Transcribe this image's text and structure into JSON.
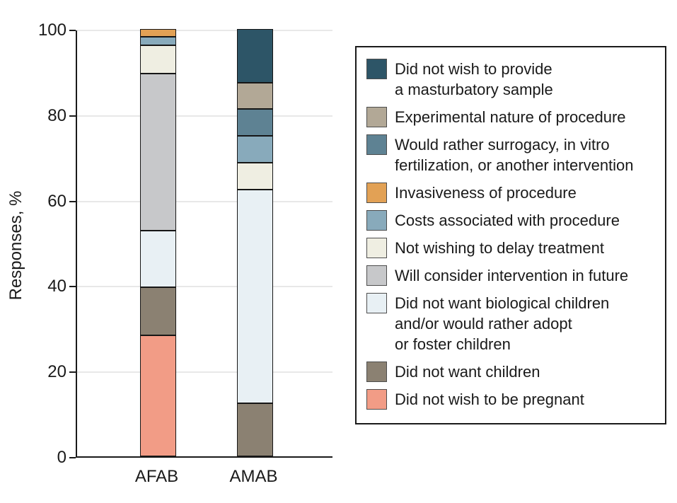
{
  "figure": {
    "y_axis_label": "Responses, %"
  },
  "chart_data": {
    "type": "bar",
    "subtype": "stacked_percentage",
    "title": "",
    "xlabel": "",
    "ylabel": "Responses, %",
    "ylim": [
      0,
      100
    ],
    "y_ticks": [
      0,
      20,
      40,
      60,
      80,
      100
    ],
    "grid": true,
    "legend_position": "right",
    "categories": [
      "AFAB",
      "AMAB"
    ],
    "series_order": "bottom_to_top",
    "series": [
      {
        "name": "Did not wish to be pregnant",
        "color": "#F29C86",
        "values": [
          28.3,
          0
        ]
      },
      {
        "name": "Did not want children",
        "color": "#8B8172",
        "values": [
          11.3,
          12.5
        ]
      },
      {
        "name": "Did not want biological children and/or would rather adopt or foster children",
        "color": "#E8F0F4",
        "values": [
          13.2,
          50
        ]
      },
      {
        "name": "Will consider intervention in future",
        "color": "#C7C8CA",
        "values": [
          36.8,
          0
        ]
      },
      {
        "name": "Not wishing to delay treatment",
        "color": "#EFEEE2",
        "values": [
          6.6,
          6.25
        ]
      },
      {
        "name": "Costs associated with procedure",
        "color": "#88AABB",
        "values": [
          1.9,
          6.25
        ]
      },
      {
        "name": "Invasiveness of procedure",
        "color": "#E2A155",
        "values": [
          1.9,
          0
        ]
      },
      {
        "name": "Would rather surrogacy, in vitro fertilization, or another intervention",
        "color": "#5E8293",
        "values": [
          0,
          6.25
        ]
      },
      {
        "name": "Experimental nature of procedure",
        "color": "#B2A896",
        "values": [
          0,
          6.25
        ]
      },
      {
        "name": "Did not wish to provide a masturbatory sample",
        "color": "#2D5567",
        "values": [
          0,
          12.5
        ]
      }
    ]
  },
  "legend": {
    "items": [
      {
        "color": "#2D5567",
        "lines": [
          "Did not wish to provide",
          "a masturbatory sample"
        ]
      },
      {
        "color": "#B2A896",
        "lines": [
          "Experimental nature of procedure"
        ]
      },
      {
        "color": "#5E8293",
        "lines": [
          "Would rather surrogacy, in vitro",
          "fertilization, or another intervention"
        ]
      },
      {
        "color": "#E2A155",
        "lines": [
          "Invasiveness of procedure"
        ]
      },
      {
        "color": "#88AABB",
        "lines": [
          "Costs associated with procedure"
        ]
      },
      {
        "color": "#EFEEE2",
        "lines": [
          "Not wishing to delay treatment"
        ]
      },
      {
        "color": "#C7C8CA",
        "lines": [
          "Will consider intervention in future"
        ]
      },
      {
        "color": "#E8F0F4",
        "lines": [
          "Did not want biological children",
          "and/or would rather adopt",
          "or foster children"
        ]
      },
      {
        "color": "#8B8172",
        "lines": [
          "Did not want children"
        ]
      },
      {
        "color": "#F29C86",
        "lines": [
          "Did not wish to be pregnant"
        ]
      }
    ]
  },
  "colors": {
    "axis": "#1a1a1a",
    "gridline": "#e8e8e8",
    "background": "#ffffff"
  }
}
